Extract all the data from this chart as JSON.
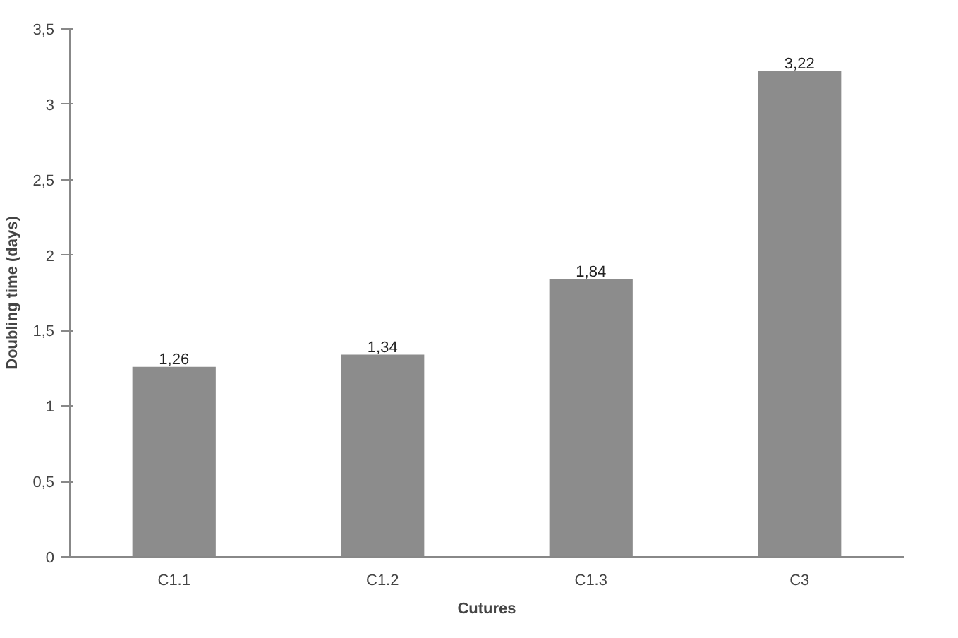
{
  "chart_data": {
    "type": "bar",
    "xlabel": "Cutures",
    "ylabel": "Doubling time (days)",
    "categories": [
      "C1.1",
      "C1.2",
      "C1.3",
      "C3"
    ],
    "values": [
      1.26,
      1.34,
      1.84,
      3.22
    ],
    "value_labels": [
      "1,26",
      "1,34",
      "1,84",
      "3,22"
    ],
    "color": "#8c8c8c",
    "ylim": [
      0,
      3.5
    ],
    "yticks": [
      0,
      {
        "value": 0.5,
        "label": "0,5"
      },
      1,
      {
        "value": 1.5,
        "label": "1,5"
      },
      2,
      {
        "value": 2.5,
        "label": "2,5"
      },
      3,
      {
        "value": 3.5,
        "label": "3,5"
      }
    ],
    "grid": false
  }
}
